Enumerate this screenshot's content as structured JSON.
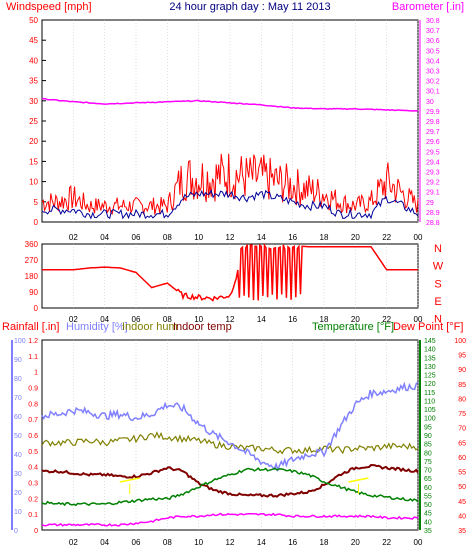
{
  "colors": {
    "background": "#ffffff",
    "frame": "#000000",
    "windspeed": "#ff0000",
    "wind_avg": "#000099",
    "barometer": "#ff00ff",
    "wind_dir": "#ff0000",
    "rainfall": "#ff0000",
    "humidity": "#8080ff",
    "indoor_hum": "#808000",
    "indoor_temp": "#800000",
    "temperature": "#008000",
    "dew_point": "#ff0000",
    "solar_marker": "#ffff00",
    "outdoor_hum_line": "#ff00ff",
    "title": "#000080"
  },
  "chart_data": [
    {
      "type": "line",
      "title": "24 hour graph day : May 11 2013",
      "x_tick_labels": [
        "02",
        "04",
        "06",
        "08",
        "10",
        "12",
        "14",
        "16",
        "18",
        "20",
        "22",
        "00"
      ],
      "left_axis": {
        "label": "Windspeed [mph]",
        "ylim": [
          0,
          50
        ],
        "ticks": [
          "0",
          "5",
          "10",
          "15",
          "20",
          "25",
          "30",
          "35",
          "40",
          "45",
          "50"
        ]
      },
      "right_axis": {
        "label": "Barometer [.in]",
        "ylim": [
          28.8,
          30.8
        ],
        "ticks": [
          "28.8",
          "28.9",
          "29",
          "29.1",
          "29.2",
          "29.3",
          "29.4",
          "29.5",
          "29.6",
          "29.7",
          "29.8",
          "29.9",
          "30",
          "30.1",
          "30.2",
          "30.3",
          "30.4",
          "30.5",
          "30.6",
          "30.7",
          "30.8"
        ]
      },
      "series": [
        {
          "name": "Windspeed",
          "axis": "left",
          "x_hours": [
            0,
            1,
            2,
            3,
            4,
            5,
            6,
            7,
            8,
            9,
            10,
            11,
            12,
            13,
            14,
            15,
            16,
            17,
            18,
            19,
            20,
            21,
            22,
            23,
            24
          ],
          "values": [
            3,
            3,
            3,
            2,
            2,
            2,
            2,
            2,
            2,
            6,
            7,
            7,
            7,
            6,
            7,
            6,
            5,
            4,
            4,
            2,
            2,
            2,
            6,
            4,
            2
          ]
        },
        {
          "name": "Windspeed peak",
          "axis": "left",
          "x_hours": [
            0,
            1,
            2,
            3,
            4,
            5,
            6,
            7,
            8,
            9,
            10,
            11,
            12,
            13,
            14,
            15,
            16,
            17,
            18,
            19,
            20,
            21,
            22,
            23,
            24
          ],
          "values": [
            5,
            5,
            6,
            4,
            4,
            4,
            4,
            4,
            4,
            11,
            11,
            11,
            12,
            11,
            11,
            10,
            9,
            8,
            7,
            5,
            4,
            5,
            10,
            7,
            4
          ]
        },
        {
          "name": "Barometer",
          "axis": "right",
          "x_hours": [
            0,
            2,
            4,
            6,
            8,
            10,
            12,
            14,
            16,
            18,
            20,
            22,
            24
          ],
          "values": [
            30.02,
            29.99,
            29.97,
            29.98,
            29.99,
            30.0,
            29.98,
            29.96,
            29.93,
            29.92,
            29.92,
            29.91,
            29.9
          ]
        }
      ]
    },
    {
      "type": "line",
      "left_axis": {
        "ylim": [
          0,
          360
        ],
        "ticks": [
          "0",
          "90",
          "180",
          "270",
          "360"
        ]
      },
      "right_axis_labels": [
        "N",
        "W",
        "S",
        "E",
        "N"
      ],
      "series": [
        {
          "name": "Wind direction",
          "x_hours": [
            0,
            1,
            2,
            3,
            4,
            5,
            6,
            7,
            8,
            9,
            10,
            11,
            12,
            13,
            14,
            15,
            16,
            17,
            18,
            19,
            20,
            21,
            22,
            23,
            24
          ],
          "values": [
            215,
            215,
            215,
            225,
            230,
            225,
            200,
            115,
            140,
            70,
            60,
            55,
            70,
            330,
            340,
            330,
            350,
            345,
            345,
            345,
            345,
            345,
            215,
            215,
            215
          ]
        }
      ]
    },
    {
      "type": "line",
      "left_axis": {
        "label": "Rainfall [.in]",
        "ylim": [
          0,
          1.2
        ],
        "ticks": [
          "0",
          "0.1",
          "0.2",
          "0.3",
          "0.4",
          "0.5",
          "0.6",
          "0.7",
          "0.8",
          "0.9",
          "1",
          "1.1",
          "1.2"
        ]
      },
      "left_axis_2": {
        "label": "Humidity [%]",
        "ylim": [
          0,
          100
        ],
        "ticks": [
          "0",
          "10",
          "20",
          "30",
          "40",
          "50",
          "60",
          "70",
          "80",
          "90",
          "100"
        ]
      },
      "right_axis": {
        "label": "Temperature [°F]",
        "ylim": [
          35,
          145
        ],
        "ticks": [
          "35",
          "40",
          "45",
          "50",
          "55",
          "60",
          "65",
          "70",
          "75",
          "80",
          "85",
          "90",
          "95",
          "100",
          "105",
          "110",
          "115",
          "120",
          "125",
          "130",
          "135",
          "140",
          "145"
        ]
      },
      "right_axis_2": {
        "label": "Dew Point [°F]",
        "ylim": [
          35,
          100
        ],
        "ticks": [
          "35",
          "40",
          "45",
          "50",
          "55",
          "60",
          "65",
          "70",
          "75",
          "80",
          "85",
          "90",
          "95",
          "100"
        ]
      },
      "legend": [
        "Rainfall [.in]",
        "Humidity [%]",
        "Indoor hum",
        "Indoor temp",
        "Temperature [°F]",
        "Dew Point [°F]"
      ],
      "series": [
        {
          "name": "Humidity",
          "x_hours": [
            0,
            1,
            2,
            3,
            4,
            5,
            6,
            7,
            8,
            9,
            10,
            11,
            12,
            13,
            14,
            15,
            16,
            17,
            18,
            19,
            20,
            21,
            22,
            23,
            24
          ],
          "values": [
            60,
            61,
            63,
            62,
            60,
            61,
            59,
            61,
            66,
            64,
            56,
            50,
            46,
            41,
            36,
            33,
            37,
            40,
            41,
            54,
            66,
            72,
            73,
            75,
            76
          ]
        },
        {
          "name": "Indoor hum",
          "x_hours": [
            0,
            1,
            2,
            3,
            4,
            5,
            6,
            7,
            8,
            9,
            10,
            11,
            12,
            13,
            14,
            15,
            16,
            17,
            18,
            19,
            20,
            21,
            22,
            23,
            24
          ],
          "values": [
            46,
            46,
            46,
            47,
            46,
            47,
            48,
            50,
            49,
            48,
            47,
            45,
            44,
            43,
            43,
            42,
            42,
            42,
            43,
            42,
            43,
            43,
            44,
            44,
            44
          ]
        },
        {
          "name": "Indoor temp",
          "x_hours": [
            0,
            1,
            2,
            3,
            4,
            5,
            6,
            7,
            8,
            9,
            10,
            11,
            12,
            13,
            14,
            15,
            16,
            17,
            18,
            19,
            20,
            21,
            22,
            23,
            24
          ],
          "values": [
            69,
            69,
            68,
            67,
            67,
            66,
            66,
            68,
            71,
            69,
            62,
            58,
            56,
            55,
            55,
            55,
            56,
            57,
            61,
            67,
            71,
            72,
            71,
            70,
            69
          ]
        },
        {
          "name": "Temperature",
          "x_hours": [
            0,
            1,
            2,
            3,
            4,
            5,
            6,
            7,
            8,
            9,
            10,
            11,
            12,
            13,
            14,
            15,
            16,
            17,
            18,
            19,
            20,
            21,
            22,
            23,
            24
          ],
          "values": [
            51,
            50,
            50,
            50,
            50,
            51,
            52,
            53,
            53,
            56,
            60,
            64,
            67,
            70,
            70,
            70,
            69,
            67,
            63,
            60,
            57,
            55,
            54,
            53,
            52
          ]
        },
        {
          "name": "Dew Point",
          "x_hours": [
            0,
            1,
            2,
            3,
            4,
            5,
            6,
            7,
            8,
            9,
            10,
            11,
            12,
            13,
            14,
            15,
            16,
            17,
            18,
            19,
            20,
            21,
            22,
            23,
            24
          ],
          "values": [
            38,
            38,
            38,
            38,
            38,
            38,
            39,
            40,
            42,
            43,
            43,
            44,
            44,
            44,
            44,
            44,
            43,
            43,
            43,
            43,
            43,
            43,
            42,
            42,
            42
          ]
        }
      ]
    }
  ]
}
